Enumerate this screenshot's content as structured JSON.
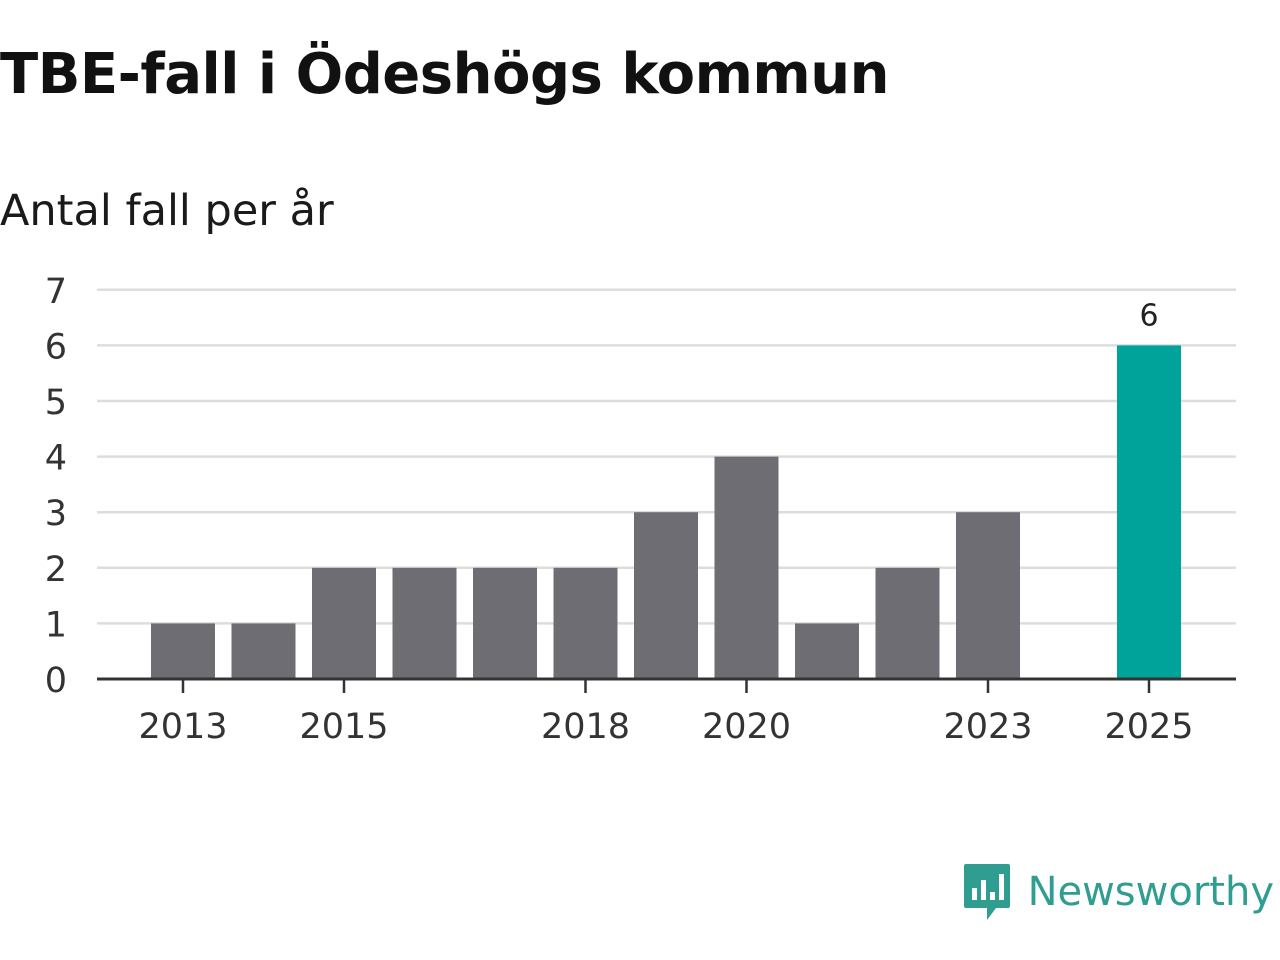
{
  "header": {
    "title": "TBE-fall i Ödeshögs kommun",
    "subtitle": "Antal fall per år"
  },
  "branding": {
    "name": "Newsworthy",
    "color": "#2f9e91"
  },
  "colors": {
    "bar": "#6e6d74",
    "highlight": "#00a39a",
    "grid": "#dddddd",
    "axis": "#333333"
  },
  "chart_data": {
    "type": "bar",
    "title": "TBE-fall i Ödeshögs kommun",
    "subtitle": "Antal fall per år",
    "xlabel": "",
    "ylabel": "",
    "categories": [
      "2013",
      "2014",
      "2015",
      "2016",
      "2017",
      "2018",
      "2019",
      "2020",
      "2021",
      "2022",
      "2023",
      "2024",
      "2025"
    ],
    "values": [
      1,
      1,
      2,
      2,
      2,
      2,
      3,
      4,
      1,
      2,
      3,
      0,
      6
    ],
    "x_tick_labels": [
      "2013",
      "2015",
      "2018",
      "2020",
      "2023",
      "2025"
    ],
    "y_ticks": [
      0,
      1,
      2,
      3,
      4,
      5,
      6,
      7
    ],
    "ylim": [
      0,
      7
    ],
    "highlight": {
      "category": "2025",
      "label": "6"
    },
    "grid": true,
    "legend": "none"
  }
}
